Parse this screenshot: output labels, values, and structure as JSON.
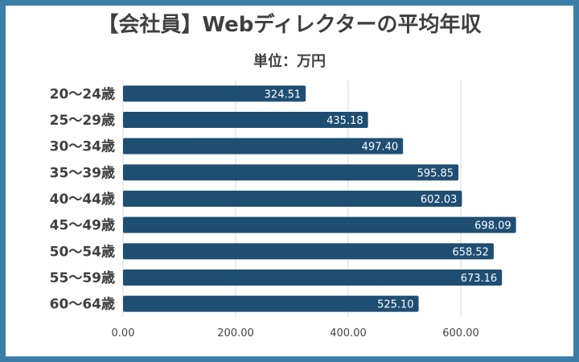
{
  "chart_data": {
    "type": "bar",
    "orientation": "horizontal",
    "title": "【会社員】Webディレクターの平均年収",
    "subtitle": "単位：万円",
    "categories": [
      "20〜24歳",
      "25〜29歳",
      "30〜34歳",
      "35〜39歳",
      "40〜44歳",
      "45〜49歳",
      "50〜54歳",
      "55〜59歳",
      "60〜64歳"
    ],
    "values": [
      324.51,
      435.18,
      497.4,
      595.85,
      602.03,
      698.09,
      658.52,
      673.16,
      525.1
    ],
    "value_labels": [
      "324.51",
      "435.18",
      "497.40",
      "595.85",
      "602.03",
      "698.09",
      "658.52",
      "673.16",
      "525.10"
    ],
    "xlim": [
      0,
      700
    ],
    "xticks": [
      0,
      200,
      400,
      600
    ],
    "xtick_labels": [
      "0.00",
      "200.00",
      "400.00",
      "600.00"
    ],
    "grid": true,
    "bar_color": "#1f4e73",
    "frame_color": "#3b7fa8"
  }
}
